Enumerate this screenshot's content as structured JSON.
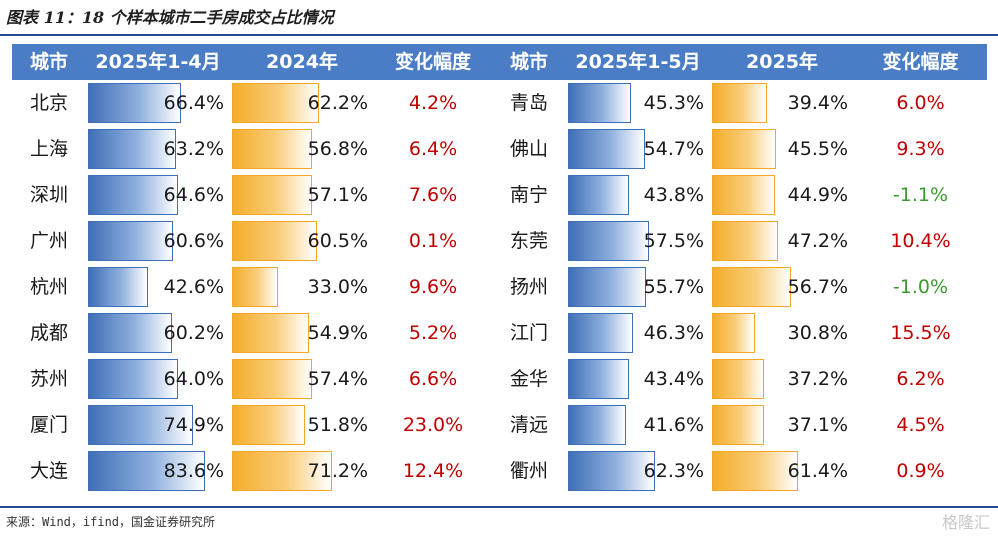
{
  "title": "图表 11：18 个样本城市二手房成交占比情况",
  "source": "来源：Wind，ifind，国金证券研究所",
  "watermark": "格隆汇",
  "colors": {
    "header_bg": "#4a7dc6",
    "blue_bar": "#3f6fb6",
    "orange_bar": "#f4ad2a",
    "positive_change": "#c00000",
    "negative_change": "#3a9a2e",
    "rule": "#1f4e96"
  },
  "chart_data": [
    {
      "type": "table",
      "columns": [
        "城市",
        "2025年1-4月",
        "2024年",
        "变化幅度"
      ],
      "rows": [
        {
          "city": "北京",
          "a": 66.4,
          "a_label": "66.4%",
          "b": 62.2,
          "b_label": "62.2%",
          "change": 4.2,
          "change_label": "4.2%"
        },
        {
          "city": "上海",
          "a": 63.2,
          "a_label": "63.2%",
          "b": 56.8,
          "b_label": "56.8%",
          "change": 6.4,
          "change_label": "6.4%"
        },
        {
          "city": "深圳",
          "a": 64.6,
          "a_label": "64.6%",
          "b": 57.1,
          "b_label": "57.1%",
          "change": 7.6,
          "change_label": "7.6%"
        },
        {
          "city": "广州",
          "a": 60.6,
          "a_label": "60.6%",
          "b": 60.5,
          "b_label": "60.5%",
          "change": 0.1,
          "change_label": "0.1%"
        },
        {
          "city": "杭州",
          "a": 42.6,
          "a_label": "42.6%",
          "b": 33.0,
          "b_label": "33.0%",
          "change": 9.6,
          "change_label": "9.6%"
        },
        {
          "city": "成都",
          "a": 60.2,
          "a_label": "60.2%",
          "b": 54.9,
          "b_label": "54.9%",
          "change": 5.2,
          "change_label": "5.2%"
        },
        {
          "city": "苏州",
          "a": 64.0,
          "a_label": "64.0%",
          "b": 57.4,
          "b_label": "57.4%",
          "change": 6.6,
          "change_label": "6.6%"
        },
        {
          "city": "厦门",
          "a": 74.9,
          "a_label": "74.9%",
          "b": 51.8,
          "b_label": "51.8%",
          "change": 23.0,
          "change_label": "23.0%"
        },
        {
          "city": "大连",
          "a": 83.6,
          "a_label": "83.6%",
          "b": 71.2,
          "b_label": "71.2%",
          "change": 12.4,
          "change_label": "12.4%"
        }
      ]
    },
    {
      "type": "table",
      "columns": [
        "城市",
        "2025年1-5月",
        "2025年",
        "变化幅度"
      ],
      "rows": [
        {
          "city": "青岛",
          "a": 45.3,
          "a_label": "45.3%",
          "b": 39.4,
          "b_label": "39.4%",
          "change": 6.0,
          "change_label": "6.0%"
        },
        {
          "city": "佛山",
          "a": 54.7,
          "a_label": "54.7%",
          "b": 45.5,
          "b_label": "45.5%",
          "change": 9.3,
          "change_label": "9.3%"
        },
        {
          "city": "南宁",
          "a": 43.8,
          "a_label": "43.8%",
          "b": 44.9,
          "b_label": "44.9%",
          "change": -1.1,
          "change_label": "-1.1%"
        },
        {
          "city": "东莞",
          "a": 57.5,
          "a_label": "57.5%",
          "b": 47.2,
          "b_label": "47.2%",
          "change": 10.4,
          "change_label": "10.4%"
        },
        {
          "city": "扬州",
          "a": 55.7,
          "a_label": "55.7%",
          "b": 56.7,
          "b_label": "56.7%",
          "change": -1.0,
          "change_label": "-1.0%"
        },
        {
          "city": "江门",
          "a": 46.3,
          "a_label": "46.3%",
          "b": 30.8,
          "b_label": "30.8%",
          "change": 15.5,
          "change_label": "15.5%"
        },
        {
          "city": "金华",
          "a": 43.4,
          "a_label": "43.4%",
          "b": 37.2,
          "b_label": "37.2%",
          "change": 6.2,
          "change_label": "6.2%"
        },
        {
          "city": "清远",
          "a": 41.6,
          "a_label": "41.6%",
          "b": 37.1,
          "b_label": "37.1%",
          "change": 4.5,
          "change_label": "4.5%"
        },
        {
          "city": "衢州",
          "a": 62.3,
          "a_label": "62.3%",
          "b": 61.4,
          "b_label": "61.4%",
          "change": 0.9,
          "change_label": "0.9%"
        }
      ]
    }
  ]
}
